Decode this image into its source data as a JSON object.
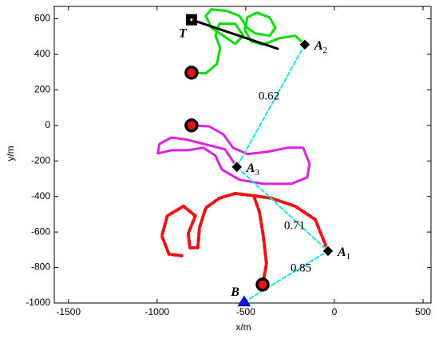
{
  "chart_data": {
    "type": "line",
    "xlabel": "x/m",
    "ylabel": "y/m",
    "xlim": [
      -1580,
      545
    ],
    "ylim": [
      -1000,
      670
    ],
    "xticks": [
      -1500,
      -1000,
      -500,
      0,
      500
    ],
    "yticks": [
      -1000,
      -800,
      -600,
      -400,
      -200,
      0,
      200,
      400,
      600
    ],
    "series": [
      {
        "color": "#00dd00",
        "width": 3,
        "dash": "none",
        "x": [
          -806,
          -725,
          -662,
          -644,
          -671,
          -649,
          -559,
          -514,
          -559,
          -626,
          -694,
          -725,
          -694,
          -604,
          -536,
          -491,
          -446,
          -365,
          -333,
          -365,
          -437,
          -491,
          -505,
          -469,
          -401,
          -311,
          -221,
          -167
        ],
        "y": [
          297,
          293,
          347,
          437,
          505,
          572,
          572,
          505,
          459,
          505,
          550,
          617,
          653,
          644,
          617,
          550,
          518,
          505,
          550,
          608,
          635,
          608,
          536,
          473,
          455,
          491,
          505,
          455
        ]
      },
      {
        "color": "#dd22dd",
        "width": 3,
        "dash": "none",
        "x": [
          -806,
          -707,
          -626,
          -572,
          -491,
          -378,
          -266,
          -176,
          -140,
          -153,
          -243,
          -401,
          -536,
          -635,
          -671,
          -739,
          -829,
          -919,
          -996,
          -986,
          -919,
          -829,
          -617,
          -550
        ],
        "y": [
          0,
          -5,
          -50,
          -126,
          -162,
          -149,
          -126,
          -126,
          -216,
          -293,
          -329,
          -329,
          -306,
          -248,
          -171,
          -126,
          -140,
          -140,
          -158,
          -104,
          -68,
          -81,
          -135,
          -234
        ]
      },
      {
        "color": "#ee1111",
        "width": 4,
        "dash": "6,3",
        "x": [
          -405,
          -383,
          -401,
          -423,
          -455,
          -559,
          -649,
          -725,
          -761,
          -770,
          -815,
          -824,
          -784,
          -851,
          -942,
          -973,
          -933,
          -860
        ],
        "y": [
          -896,
          -779,
          -622,
          -487,
          -396,
          -383,
          -410,
          -464,
          -577,
          -689,
          -689,
          -608,
          -509,
          -455,
          -509,
          -622,
          -725,
          -734
        ]
      },
      {
        "color": "#ee1111",
        "width": 4,
        "dash": "6,3",
        "x": [
          -455,
          -356,
          -221,
          -108,
          -36
        ],
        "y": [
          -396,
          -410,
          -455,
          -530,
          -707
        ]
      },
      {
        "color": "#000000",
        "width": 3,
        "dash": "none",
        "x": [
          -806,
          -320
        ],
        "y": [
          595,
          432
        ]
      },
      {
        "color": "#22ddee",
        "width": 2,
        "dash": "5,3",
        "x": [
          -167,
          -550,
          -36,
          -509
        ],
        "y": [
          455,
          -234,
          -707,
          -995
        ]
      }
    ],
    "points": [
      {
        "shape": "diamond",
        "color": "#000000",
        "x": -167,
        "y": 455,
        "label": "A",
        "sub": "2"
      },
      {
        "shape": "diamond",
        "color": "#000000",
        "x": -550,
        "y": -234,
        "label": "A",
        "sub": "3"
      },
      {
        "shape": "diamond",
        "color": "#000000",
        "x": -36,
        "y": -707,
        "label": "A",
        "sub": "1"
      },
      {
        "shape": "triangle",
        "color": "#1111ee",
        "x": -509,
        "y": -995,
        "label": "B"
      },
      {
        "shape": "square",
        "color": "#000000",
        "x": -806,
        "y": 595,
        "label": "T"
      },
      {
        "shape": "circle",
        "color": "#ee1111",
        "x": -806,
        "y": 297
      },
      {
        "shape": "circle",
        "color": "#ee1111",
        "x": -806,
        "y": 0
      },
      {
        "shape": "circle",
        "color": "#ee1111",
        "x": -405,
        "y": -896
      }
    ],
    "annotations": [
      {
        "value": 0.62,
        "x": -369,
        "y": 162
      },
      {
        "value": 0.71,
        "x": -225,
        "y": -568
      },
      {
        "value": 0.85,
        "x": -189,
        "y": -806
      }
    ]
  }
}
